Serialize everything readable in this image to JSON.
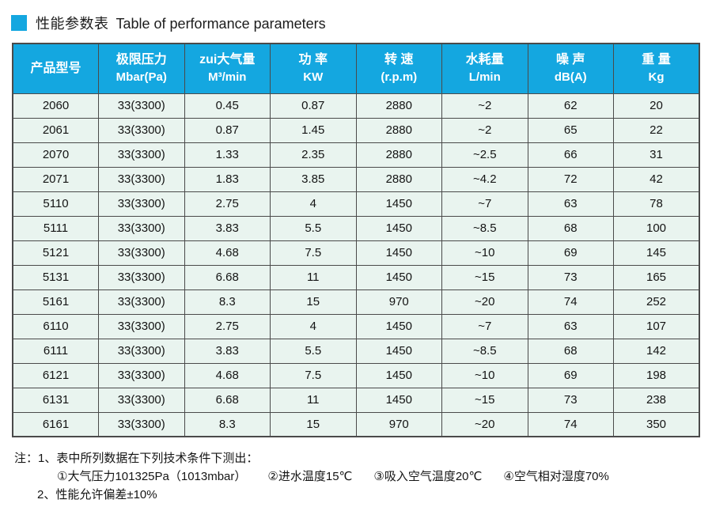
{
  "page": {
    "title_zh": "性能参数表",
    "title_en": "Table of performance parameters",
    "accent_color": "#14a7e0"
  },
  "table": {
    "header_bg": "#14a7e0",
    "row_bg": "#e9f4ef",
    "border_color": "#4a4a4a",
    "columns": [
      {
        "key": "product-model",
        "zh": "产品型号",
        "unit": ""
      },
      {
        "key": "ultimate-pressure",
        "zh": "极限压力",
        "unit": "Mbar(Pa)"
      },
      {
        "key": "max-air-flow",
        "zh": "zui大气量",
        "unit": "M³/min"
      },
      {
        "key": "power",
        "zh": "功 率",
        "unit": "KW"
      },
      {
        "key": "speed",
        "zh": "转 速",
        "unit": "(r.p.m)"
      },
      {
        "key": "water-consumption",
        "zh": "水耗量",
        "unit": "L/min"
      },
      {
        "key": "noise",
        "zh": "噪 声",
        "unit": "dB(A)"
      },
      {
        "key": "weight",
        "zh": "重 量",
        "unit": "Kg"
      }
    ],
    "rows": [
      [
        "2060",
        "33(3300)",
        "0.45",
        "0.87",
        "2880",
        "~2",
        "62",
        "20"
      ],
      [
        "2061",
        "33(3300)",
        "0.87",
        "1.45",
        "2880",
        "~2",
        "65",
        "22"
      ],
      [
        "2070",
        "33(3300)",
        "1.33",
        "2.35",
        "2880",
        "~2.5",
        "66",
        "31"
      ],
      [
        "2071",
        "33(3300)",
        "1.83",
        "3.85",
        "2880",
        "~4.2",
        "72",
        "42"
      ],
      [
        "5110",
        "33(3300)",
        "2.75",
        "4",
        "1450",
        "~7",
        "63",
        "78"
      ],
      [
        "5111",
        "33(3300)",
        "3.83",
        "5.5",
        "1450",
        "~8.5",
        "68",
        "100"
      ],
      [
        "5121",
        "33(3300)",
        "4.68",
        "7.5",
        "1450",
        "~10",
        "69",
        "145"
      ],
      [
        "5131",
        "33(3300)",
        "6.68",
        "11",
        "1450",
        "~15",
        "73",
        "165"
      ],
      [
        "5161",
        "33(3300)",
        "8.3",
        "15",
        "970",
        "~20",
        "74",
        "252"
      ],
      [
        "6110",
        "33(3300)",
        "2.75",
        "4",
        "1450",
        "~7",
        "63",
        "107"
      ],
      [
        "6111",
        "33(3300)",
        "3.83",
        "5.5",
        "1450",
        "~8.5",
        "68",
        "142"
      ],
      [
        "6121",
        "33(3300)",
        "4.68",
        "7.5",
        "1450",
        "~10",
        "69",
        "198"
      ],
      [
        "6131",
        "33(3300)",
        "6.68",
        "11",
        "1450",
        "~15",
        "73",
        "238"
      ],
      [
        "6161",
        "33(3300)",
        "8.3",
        "15",
        "970",
        "~20",
        "74",
        "350"
      ]
    ]
  },
  "notes": {
    "label": "注：",
    "item1": "1、表中所列数据在下列技术条件下测出：",
    "conditions": [
      "①大气压力101325Pa（1013mbar）",
      "②进水温度15℃",
      "③吸入空气温度20℃",
      "④空气相对湿度70%"
    ],
    "item2": "2、性能允许偏差±10%"
  }
}
